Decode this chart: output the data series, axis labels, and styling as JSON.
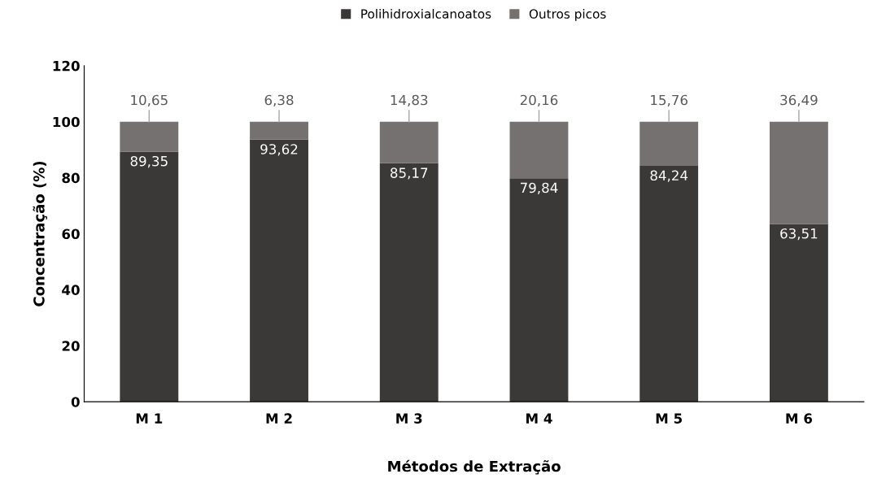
{
  "chart_data": {
    "type": "bar",
    "stacked": true,
    "xlabel": "Métodos de Extração",
    "ylabel": "Concentração (%)",
    "categories": [
      "M 1",
      "M 2",
      "M 3",
      "M 4",
      "M 5",
      "M 6"
    ],
    "series": [
      {
        "name": "Polihidroxialcanoatos",
        "color": "#3b3838",
        "values": [
          89.35,
          93.62,
          85.17,
          79.84,
          84.24,
          63.51
        ],
        "value_labels": [
          "89,35",
          "93,62",
          "85,17",
          "79,84",
          "84,24",
          "63,51"
        ]
      },
      {
        "name": "Outros picos",
        "color": "#757171",
        "values": [
          10.65,
          6.38,
          14.83,
          20.16,
          15.76,
          36.49
        ],
        "value_labels": [
          "10,65",
          "6,38",
          "14,83",
          "20,16",
          "15,76",
          "36,49"
        ]
      }
    ],
    "ylim": [
      0,
      120
    ],
    "yticks": [
      0,
      20,
      40,
      60,
      80,
      100,
      120
    ],
    "grid": false,
    "legend": "top"
  }
}
